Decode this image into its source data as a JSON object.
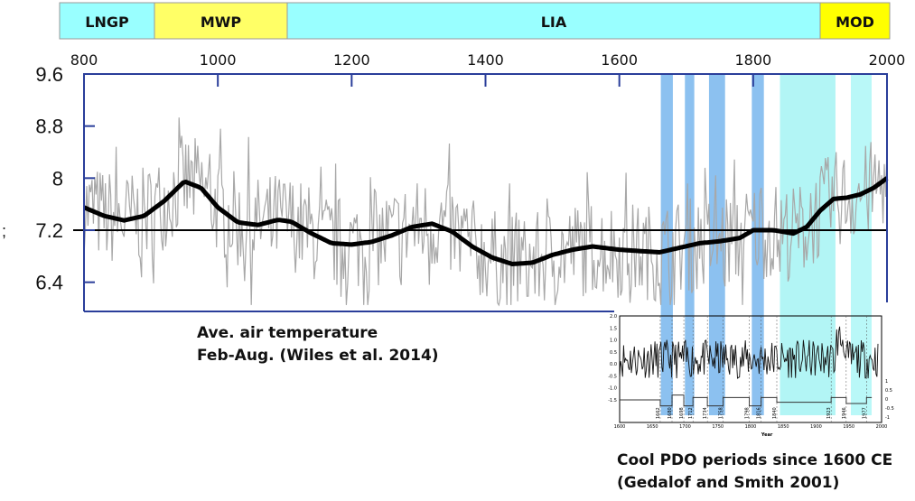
{
  "chart_data": [
    {
      "type": "line",
      "title": "",
      "xlabel": "",
      "ylabel": "",
      "xlim": [
        800,
        2000
      ],
      "ylim": [
        6.0,
        9.6
      ],
      "x_ticks": [
        "800",
        "1000",
        "1200",
        "1400",
        "1600",
        "1800",
        "2000"
      ],
      "y_ticks": [
        "9.6",
        "8.8",
        "8",
        "7.2",
        "6.4"
      ],
      "y_axis_stray_label": ";",
      "reference_line": 7.2,
      "periods": [
        {
          "label": "LNGP",
          "start": 800,
          "end": 900,
          "color": "#99ffff"
        },
        {
          "label": "MWP",
          "start": 900,
          "end": 1100,
          "color": "#ffff66"
        },
        {
          "label": "LIA",
          "start": 1100,
          "end": 1900,
          "color": "#99ffff"
        },
        {
          "label": "MOD",
          "start": 1900,
          "end": 2000,
          "color": "#ffff00"
        }
      ],
      "series": [
        {
          "name": "Smoothed temperature",
          "color": "#000000",
          "x": [
            800,
            830,
            860,
            890,
            920,
            950,
            975,
            1000,
            1030,
            1060,
            1090,
            1110,
            1140,
            1170,
            1200,
            1230,
            1260,
            1290,
            1320,
            1350,
            1380,
            1410,
            1440,
            1470,
            1500,
            1530,
            1560,
            1600,
            1630,
            1660,
            1690,
            1720,
            1750,
            1780,
            1800,
            1830,
            1860,
            1880,
            1900,
            1920,
            1940,
            1960,
            1980,
            2000
          ],
          "y": [
            7.55,
            7.42,
            7.35,
            7.42,
            7.65,
            7.95,
            7.85,
            7.55,
            7.32,
            7.28,
            7.36,
            7.33,
            7.15,
            7.0,
            6.98,
            7.02,
            7.12,
            7.25,
            7.3,
            7.18,
            6.95,
            6.78,
            6.68,
            6.7,
            6.82,
            6.9,
            6.95,
            6.9,
            6.88,
            6.86,
            6.93,
            7.0,
            7.03,
            7.08,
            7.2,
            7.2,
            7.15,
            7.25,
            7.5,
            7.68,
            7.7,
            7.75,
            7.85,
            8.0
          ]
        },
        {
          "name": "Annual air temperature (Feb-Aug)",
          "color": "#aaaaaa",
          "note": "high-frequency noise around smoothed curve"
        }
      ],
      "cool_pdo_bands": [
        {
          "start": 1662,
          "end": 1680,
          "color": "#6fb2ec"
        },
        {
          "start": 1698,
          "end": 1712,
          "color": "#6fb2ec"
        },
        {
          "start": 1734,
          "end": 1758,
          "color": "#6fb2ec"
        },
        {
          "start": 1798,
          "end": 1816,
          "color": "#6fb2ec"
        },
        {
          "start": 1840,
          "end": 1923,
          "color": "#9ff3f3"
        },
        {
          "start": 1946,
          "end": 1977,
          "color": "#a8f6f6"
        }
      ]
    },
    {
      "type": "line",
      "title": "",
      "xlabel": "Year",
      "xlim": [
        1600,
        2000
      ],
      "ylim": [
        -2.0,
        2.0
      ],
      "x_ticks": [
        "1600",
        "1650",
        "1700",
        "1750",
        "1800",
        "1850",
        "1900",
        "1950",
        "2000"
      ],
      "y_ticks": [
        "2.0",
        "1.5",
        "1.0",
        "0.5",
        "0.0",
        "-0.5",
        "-1.0",
        "-1.5"
      ],
      "y2_ticks": [
        "1",
        "0.5",
        "0",
        "-0.5",
        "-1"
      ],
      "period_labels": [
        "1662",
        "1680",
        "1698",
        "1712",
        "1734",
        "1758",
        "1798",
        "1816",
        "1840",
        "1923",
        "1946",
        "1977"
      ]
    }
  ],
  "captions": {
    "main_line1": "Ave. air temperature",
    "main_line2": "Feb-Aug. (Wiles et al. 2014)",
    "inset_line1": "Cool PDO periods since 1600 CE",
    "inset_line2": "(Gedalof and Smith 2001)"
  }
}
